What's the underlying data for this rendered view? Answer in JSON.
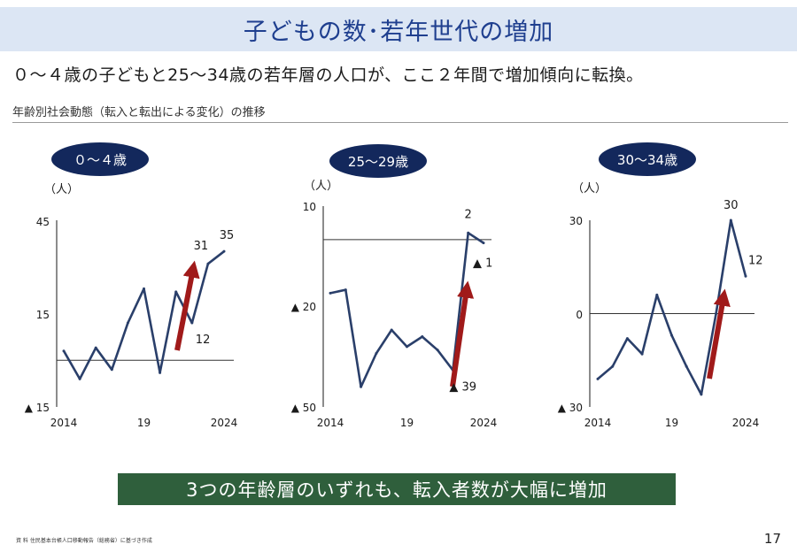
{
  "header": {
    "title": "子どもの数･若年世代の増加"
  },
  "subtitle": "０～４歳の子どもと25～34歳の若年層の人口が、ここ２年間で増加傾向に転換。",
  "section_label": "年齢別社会動態（転入と転出による変化）の推移",
  "conclusion": "3つの年齢層のいずれも、転入者数が大幅に増加",
  "source": "資 料 住民基本台帳人口移動報告（総務省）に基づき作成",
  "page_number": "17",
  "colors": {
    "line": "#2a3f6a",
    "arrow": "#a01a1a",
    "pill": "#13285c",
    "banner": "#2f5f3c",
    "title_band": "#dce6f4"
  },
  "chart_data": [
    {
      "type": "line",
      "title": "０～４歳",
      "ylabel": "（人）",
      "ylim": [
        -15,
        45
      ],
      "ytick_labels": [
        "45",
        "15",
        "▲ 15"
      ],
      "xtick_labels": [
        "2014",
        "19",
        "2024"
      ],
      "x": [
        2014,
        2015,
        2016,
        2017,
        2018,
        2019,
        2020,
        2021,
        2022,
        2023,
        2024
      ],
      "values": [
        3,
        -6,
        4,
        -3,
        12,
        23,
        -4,
        22,
        12,
        31,
        35
      ],
      "annotations": [
        "12",
        "31",
        "35"
      ],
      "trend_arrow": true
    },
    {
      "type": "line",
      "title": "25～29歳",
      "ylabel": "（人）",
      "ylim": [
        -50,
        10
      ],
      "ytick_labels": [
        "10",
        "▲ 20",
        "▲ 50"
      ],
      "xtick_labels": [
        "2014",
        "19",
        "2024"
      ],
      "x": [
        2014,
        2015,
        2016,
        2017,
        2018,
        2019,
        2020,
        2021,
        2022,
        2023,
        2024
      ],
      "values": [
        -16,
        -15,
        -44,
        -34,
        -27,
        -32,
        -29,
        -33,
        -39,
        2,
        -1
      ],
      "annotations": [
        "▲ 39",
        "2",
        "▲ 1"
      ],
      "trend_arrow": true
    },
    {
      "type": "line",
      "title": "30～34歳",
      "ylabel": "（人）",
      "ylim": [
        -30,
        30
      ],
      "ytick_labels": [
        "30",
        "0",
        "▲ 30"
      ],
      "xtick_labels": [
        "2014",
        "19",
        "2024"
      ],
      "x": [
        2014,
        2015,
        2016,
        2017,
        2018,
        2019,
        2020,
        2021,
        2022,
        2023,
        2024
      ],
      "values": [
        -21,
        -17,
        -8,
        -13,
        6,
        -7,
        -17,
        -26,
        0,
        30,
        12
      ],
      "annotations": [
        "30",
        "12"
      ],
      "trend_arrow": true
    }
  ]
}
